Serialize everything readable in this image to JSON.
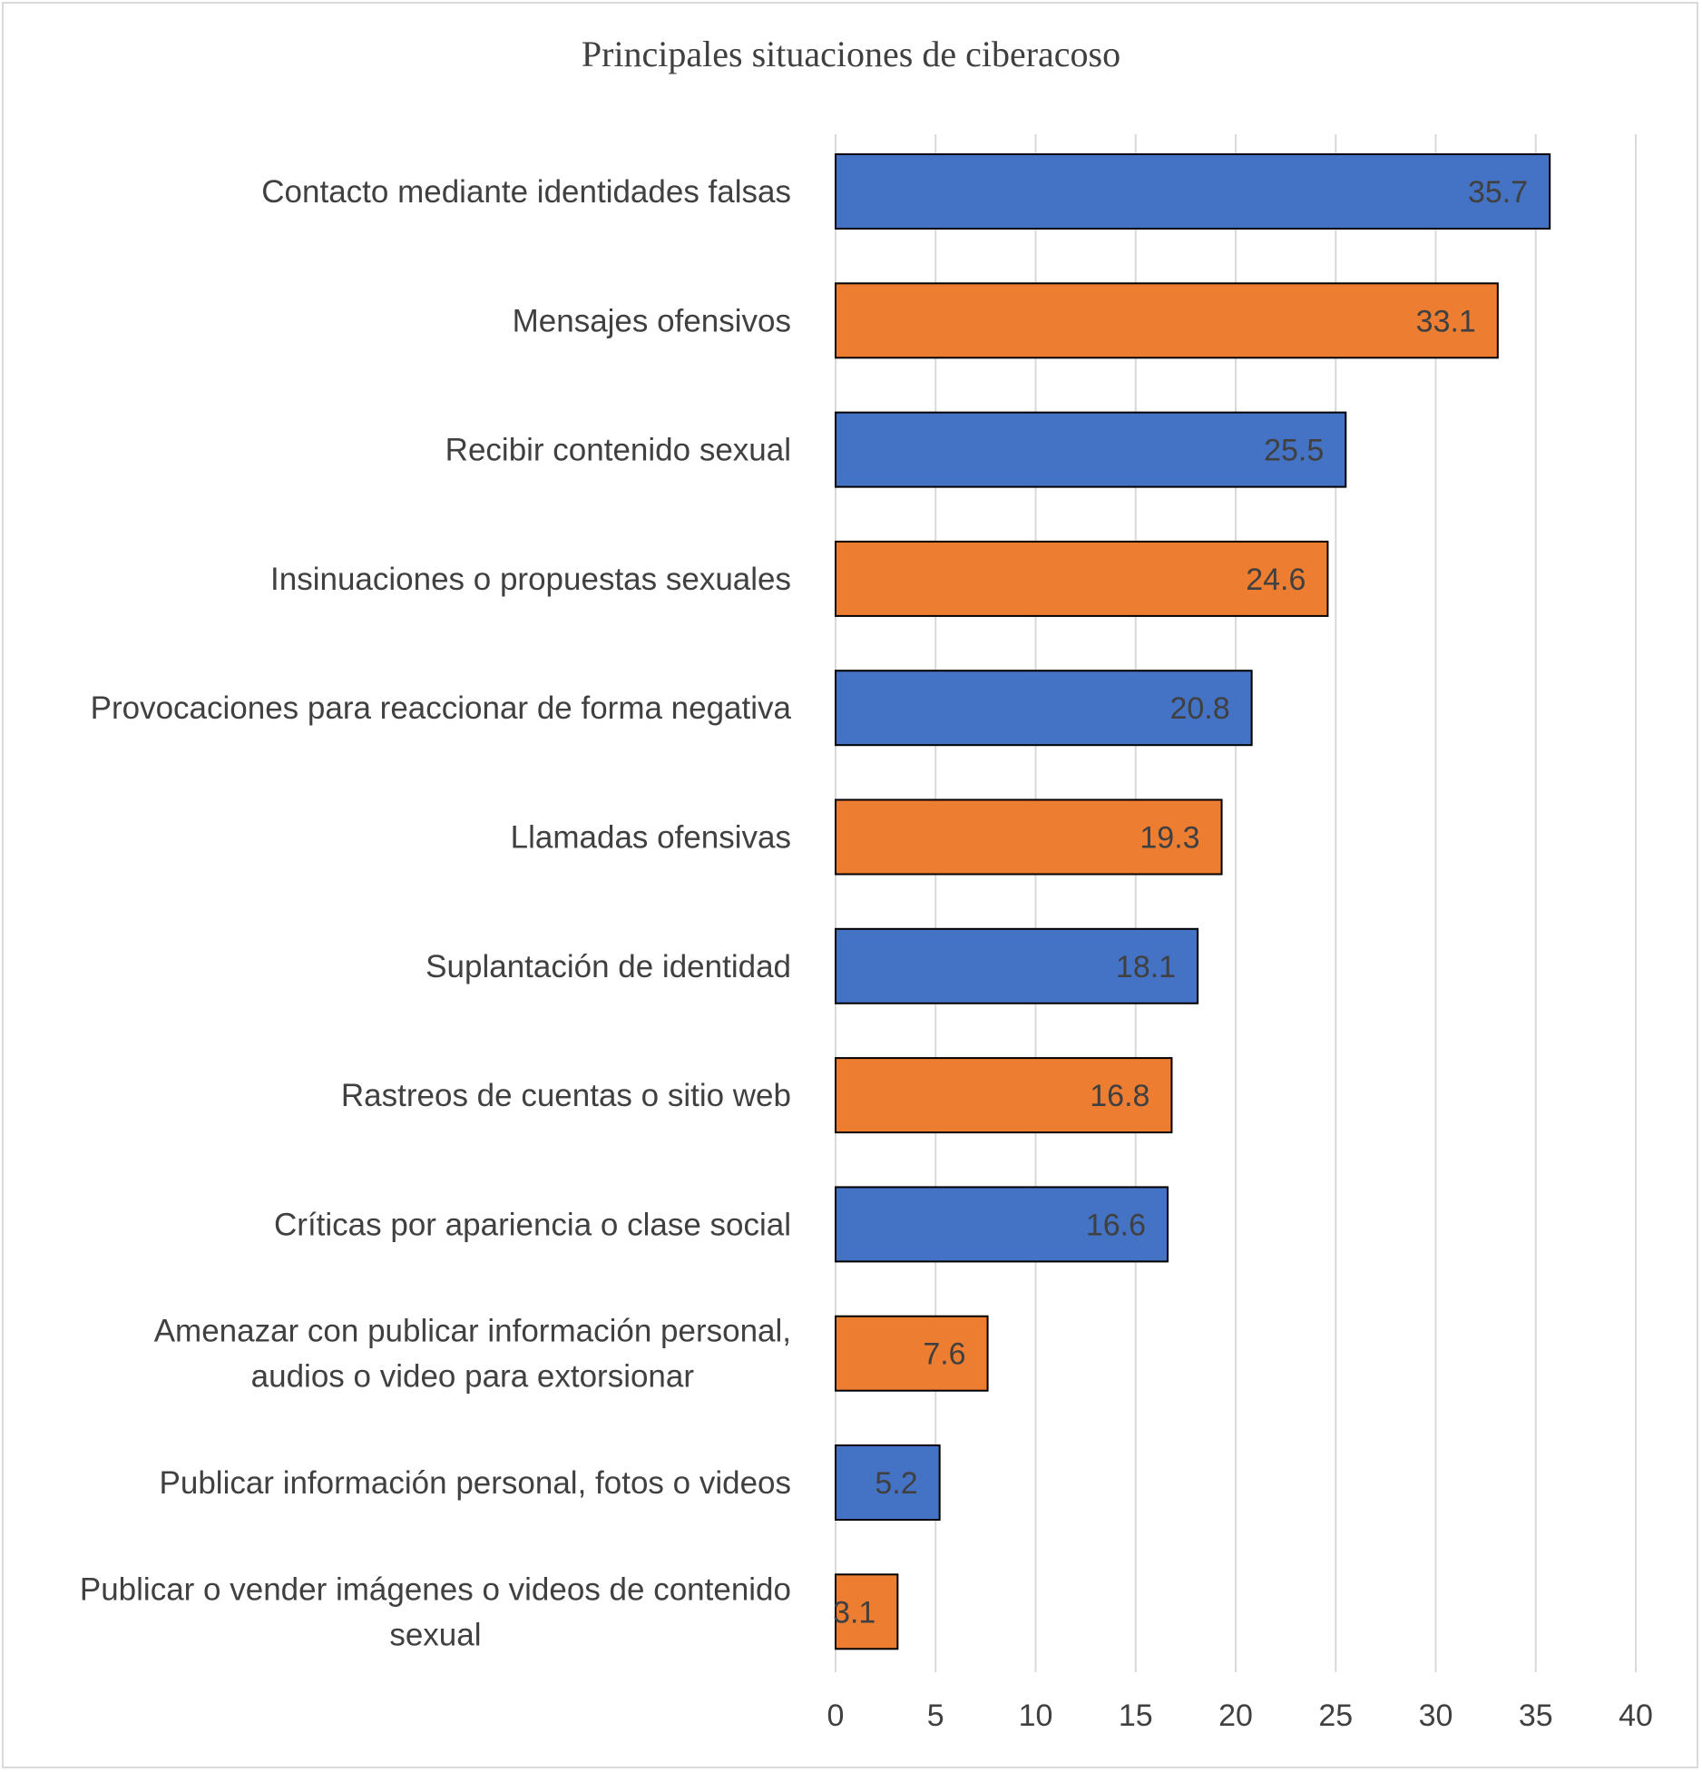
{
  "chart_data": {
    "type": "bar",
    "orientation": "horizontal",
    "title": "Principales situaciones de ciberacoso",
    "xlabel": "",
    "ylabel": "",
    "xlim": [
      0,
      40
    ],
    "x_ticks": [
      0,
      5,
      10,
      15,
      20,
      25,
      30,
      35,
      40
    ],
    "grid": "vertical",
    "legend": "none",
    "colors": [
      "#4472C4",
      "#ED7D31"
    ],
    "bar_outline": "#000000",
    "categories": [
      [
        "Contacto mediante identidades falsas"
      ],
      [
        "Mensajes ofensivos"
      ],
      [
        "Recibir contenido sexual"
      ],
      [
        "Insinuaciones o propuestas sexuales"
      ],
      [
        "Provocaciones para reaccionar de forma negativa"
      ],
      [
        "Llamadas ofensivas"
      ],
      [
        "Suplantación de identidad"
      ],
      [
        "Rastreos de cuentas o sitio web"
      ],
      [
        "Críticas por apariencia o clase social"
      ],
      [
        "Amenazar con publicar información personal,",
        "audios o video para extorsionar"
      ],
      [
        "Publicar información personal, fotos o videos"
      ],
      [
        "Publicar o vender imágenes o videos de contenido",
        "sexual"
      ]
    ],
    "values": [
      35.7,
      33.1,
      25.5,
      24.6,
      20.8,
      19.3,
      18.1,
      16.8,
      16.6,
      7.6,
      5.2,
      3.1
    ],
    "data_labels": [
      "35.7",
      "33.1",
      "25.5",
      "24.6",
      "20.8",
      "19.3",
      "18.1",
      "16.8",
      "16.6",
      "7.6",
      "5.2",
      "3.1"
    ]
  }
}
